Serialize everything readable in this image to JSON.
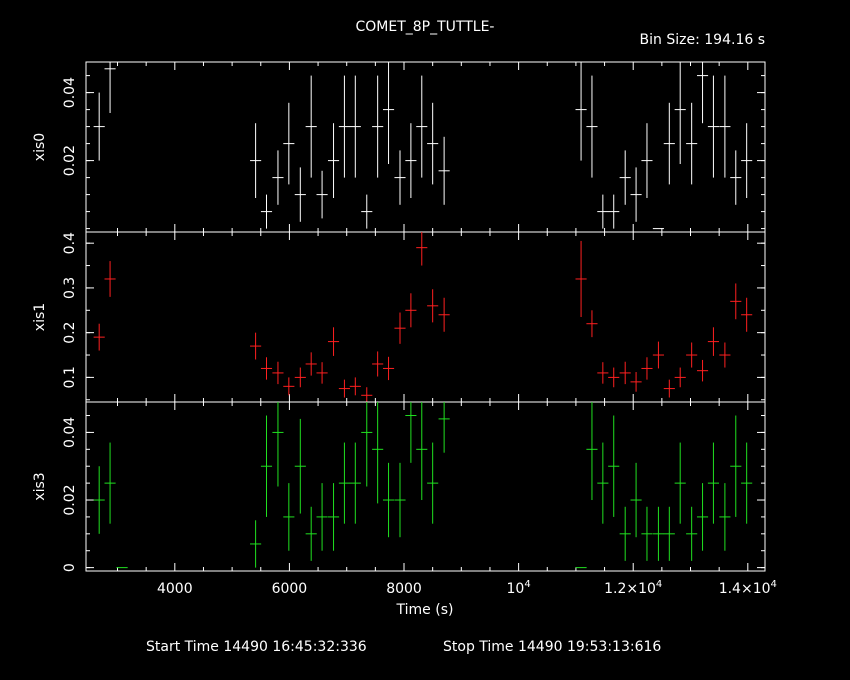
{
  "chart_data": {
    "type": "scatter",
    "title": "COMET_8P_TUTTLE-",
    "bin_size": "Bin Size: 194.16 s",
    "xlabel": "Time (s)",
    "xlim": [
      2450,
      14300
    ],
    "x_ticks": [
      {
        "value": 4000,
        "label": "4000"
      },
      {
        "value": 6000,
        "label": "6000"
      },
      {
        "value": 8000,
        "label": "8000"
      },
      {
        "value": 10000,
        "label": "10",
        "exp": "4"
      },
      {
        "value": 12000,
        "label": "1.2×10",
        "exp": "4"
      },
      {
        "value": 14000,
        "label": "1.4×10",
        "exp": "4"
      }
    ],
    "start_time": "Start Time 14490 16:45:32:336",
    "stop_time": "Stop Time 14490 19:53:13:616",
    "panels": [
      {
        "name": "xis0",
        "color": "#ffffff",
        "ylim": [
          -0.001,
          0.049
        ],
        "yticks": [
          {
            "value": 0.02,
            "label": "0.02"
          },
          {
            "value": 0.04,
            "label": "0.04"
          }
        ],
        "points": [
          [
            2680,
            0.03,
            0.01
          ],
          [
            2870,
            0.047,
            0.013
          ],
          [
            5410,
            0.02,
            0.011
          ],
          [
            5600,
            0.005,
            0.005
          ],
          [
            5800,
            0.015,
            0.008
          ],
          [
            5990,
            0.025,
            0.012
          ],
          [
            6190,
            0.01,
            0.008
          ],
          [
            6380,
            0.03,
            0.015
          ],
          [
            6570,
            0.01,
            0.007
          ],
          [
            6770,
            0.02,
            0.011
          ],
          [
            6960,
            0.03,
            0.015
          ],
          [
            7150,
            0.03,
            0.015
          ],
          [
            7350,
            0.005,
            0.005
          ],
          [
            7540,
            0.03,
            0.015
          ],
          [
            7730,
            0.035,
            0.016
          ],
          [
            7930,
            0.015,
            0.008
          ],
          [
            8120,
            0.02,
            0.011
          ],
          [
            8310,
            0.03,
            0.015
          ],
          [
            8500,
            0.025,
            0.012
          ],
          [
            8700,
            0.017,
            0.01
          ],
          [
            11090,
            0.035,
            0.015
          ],
          [
            11280,
            0.03,
            0.015
          ],
          [
            11470,
            0.005,
            0.005
          ],
          [
            11660,
            0.005,
            0.005
          ],
          [
            11860,
            0.015,
            0.008
          ],
          [
            12050,
            0.01,
            0.008
          ],
          [
            12240,
            0.02,
            0.011
          ],
          [
            12440,
            0.0,
            0.0
          ],
          [
            12630,
            0.025,
            0.012
          ],
          [
            12820,
            0.035,
            0.016
          ],
          [
            13020,
            0.025,
            0.012
          ],
          [
            13210,
            0.045,
            0.014
          ],
          [
            13400,
            0.03,
            0.015
          ],
          [
            13600,
            0.03,
            0.015
          ],
          [
            13790,
            0.015,
            0.008
          ],
          [
            13980,
            0.02,
            0.011
          ]
        ]
      },
      {
        "name": "xis1",
        "color": "#ff2020",
        "ylim": [
          0.045,
          0.425
        ],
        "yticks": [
          {
            "value": 0.1,
            "label": "0.1"
          },
          {
            "value": 0.2,
            "label": "0.2"
          },
          {
            "value": 0.3,
            "label": "0.3"
          },
          {
            "value": 0.4,
            "label": "0.4"
          }
        ],
        "points": [
          [
            2680,
            0.19,
            0.03
          ],
          [
            2870,
            0.32,
            0.04
          ],
          [
            5410,
            0.17,
            0.03
          ],
          [
            5600,
            0.12,
            0.025
          ],
          [
            5800,
            0.11,
            0.025
          ],
          [
            5990,
            0.08,
            0.02
          ],
          [
            6190,
            0.1,
            0.022
          ],
          [
            6380,
            0.13,
            0.026
          ],
          [
            6570,
            0.11,
            0.024
          ],
          [
            6770,
            0.18,
            0.032
          ],
          [
            6960,
            0.075,
            0.02
          ],
          [
            7150,
            0.08,
            0.02
          ],
          [
            7350,
            0.06,
            0.018
          ],
          [
            7540,
            0.13,
            0.028
          ],
          [
            7730,
            0.12,
            0.026
          ],
          [
            7930,
            0.21,
            0.035
          ],
          [
            8120,
            0.25,
            0.038
          ],
          [
            8310,
            0.39,
            0.04
          ],
          [
            8500,
            0.26,
            0.037
          ],
          [
            8700,
            0.24,
            0.038
          ],
          [
            11090,
            0.32,
            0.085
          ],
          [
            11280,
            0.22,
            0.03
          ],
          [
            11470,
            0.11,
            0.024
          ],
          [
            11660,
            0.1,
            0.022
          ],
          [
            11860,
            0.11,
            0.025
          ],
          [
            12050,
            0.09,
            0.022
          ],
          [
            12240,
            0.12,
            0.025
          ],
          [
            12440,
            0.15,
            0.03
          ],
          [
            12630,
            0.075,
            0.02
          ],
          [
            12820,
            0.1,
            0.022
          ],
          [
            13020,
            0.15,
            0.028
          ],
          [
            13210,
            0.115,
            0.024
          ],
          [
            13400,
            0.18,
            0.032
          ],
          [
            13600,
            0.15,
            0.028
          ],
          [
            13790,
            0.27,
            0.04
          ],
          [
            13980,
            0.24,
            0.038
          ]
        ]
      },
      {
        "name": "xis3",
        "color": "#20e020",
        "ylim": [
          -0.001,
          0.049
        ],
        "yticks": [
          {
            "value": 0,
            "label": "0"
          },
          {
            "value": 0.02,
            "label": "0.02"
          },
          {
            "value": 0.04,
            "label": "0.04"
          }
        ],
        "points": [
          [
            2680,
            0.02,
            0.01
          ],
          [
            2870,
            0.025,
            0.012
          ],
          [
            3080,
            0.0,
            0.0
          ],
          [
            5410,
            0.007,
            0.007
          ],
          [
            5600,
            0.03,
            0.015
          ],
          [
            5800,
            0.04,
            0.016
          ],
          [
            5990,
            0.015,
            0.01
          ],
          [
            6190,
            0.03,
            0.014
          ],
          [
            6380,
            0.01,
            0.008
          ],
          [
            6570,
            0.015,
            0.01
          ],
          [
            6770,
            0.015,
            0.01
          ],
          [
            6960,
            0.025,
            0.012
          ],
          [
            7150,
            0.025,
            0.012
          ],
          [
            7350,
            0.04,
            0.016
          ],
          [
            7540,
            0.035,
            0.016
          ],
          [
            7730,
            0.02,
            0.011
          ],
          [
            7930,
            0.02,
            0.011
          ],
          [
            8120,
            0.045,
            0.014
          ],
          [
            8310,
            0.035,
            0.015
          ],
          [
            8500,
            0.025,
            0.012
          ],
          [
            8700,
            0.044,
            0.01
          ],
          [
            11090,
            0.0,
            0.0
          ],
          [
            11280,
            0.035,
            0.015
          ],
          [
            11470,
            0.025,
            0.012
          ],
          [
            11660,
            0.03,
            0.015
          ],
          [
            11860,
            0.01,
            0.008
          ],
          [
            12050,
            0.02,
            0.011
          ],
          [
            12240,
            0.01,
            0.008
          ],
          [
            12440,
            0.01,
            0.008
          ],
          [
            12630,
            0.01,
            0.008
          ],
          [
            12820,
            0.025,
            0.012
          ],
          [
            13020,
            0.01,
            0.008
          ],
          [
            13210,
            0.015,
            0.01
          ],
          [
            13400,
            0.025,
            0.012
          ],
          [
            13600,
            0.015,
            0.01
          ],
          [
            13790,
            0.03,
            0.015
          ],
          [
            13980,
            0.025,
            0.012
          ]
        ]
      }
    ]
  }
}
